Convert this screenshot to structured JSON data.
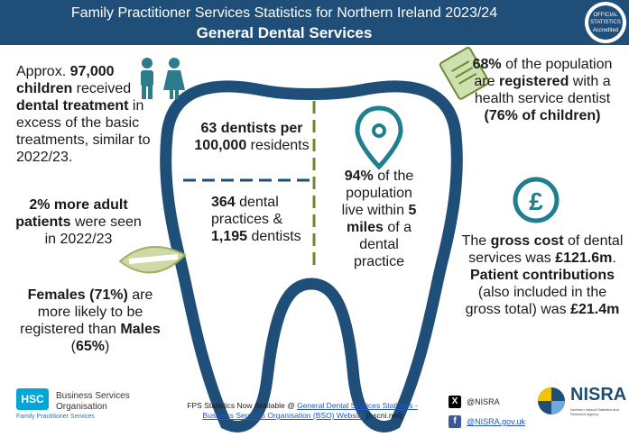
{
  "header": {
    "title": "Family Practitioner Services Statistics for Northern Ireland 2023/24",
    "subtitle": "General Dental Services",
    "badge": [
      "OFFICIAL",
      "STATISTICS",
      "Accredited"
    ]
  },
  "children": {
    "p1": "Approx. ",
    "b1": "97,000",
    "b2": "children",
    "p2": " received ",
    "b3": "dental treatment",
    "p3": " in excess of the basic treatments, similar to 2022/23."
  },
  "adults": {
    "b1": "2% more adult patients",
    "p1": " were seen in 2022/23"
  },
  "gender": {
    "b1": "Females (71%)",
    "p1": " are more likely to be registered than ",
    "b2": "Males",
    "p2": " (",
    "b3": "65%",
    "p3": ")"
  },
  "dentists": {
    "b1": "63 dentists per 100,000",
    "p1": " residents"
  },
  "practices": {
    "b1": "364",
    "p1": " dental practices & ",
    "b2": "1,195",
    "p2": " dentists"
  },
  "distance": {
    "b1": "94%",
    "p1": " of the population live within ",
    "b2": "5 miles",
    "p2": " of a dental practice"
  },
  "registered": {
    "b1": "68%",
    "p1": " of the population are ",
    "b2": "registered",
    "p2": " with a health service dentist ",
    "b3": "(76% of children)"
  },
  "cost": {
    "p1": "The ",
    "b1": "gross cost",
    "p2": " of dental services was ",
    "b2": "£121.6m",
    "p3": ". ",
    "b3": "Patient contributions",
    "p4": " (also included in the gross total) was ",
    "b4": "£21.4m"
  },
  "footer": {
    "prefix": "FPS Statistics Now Available @ ",
    "link": "General Dental Services Statistics - Business Services Organisation (BSO) Website",
    "suffix": " (hscni.net)"
  },
  "bso": {
    "logo": "HSC",
    "name_line1": "Business Services",
    "name_line2": "Organisation",
    "tagline": "Family Practitioner Services"
  },
  "social": {
    "x_handle": "@NISRA",
    "facebook_handle": "@NISRA.gov.uk"
  },
  "nisra": {
    "logo": "NISRA",
    "sub": "Northern Ireland Statistics and Research Agency"
  },
  "colors": {
    "header_bg": "#1f4e79",
    "tooth_outline": "#1f4e79",
    "divider_green": "#6a8c2e",
    "icon_teal": "#1f7f8f"
  },
  "icons": [
    "child-figures-icon",
    "smile-teeth-icon",
    "clipboard-icon",
    "location-pin-icon",
    "pound-coin-icon",
    "x-logo-icon",
    "facebook-icon"
  ]
}
